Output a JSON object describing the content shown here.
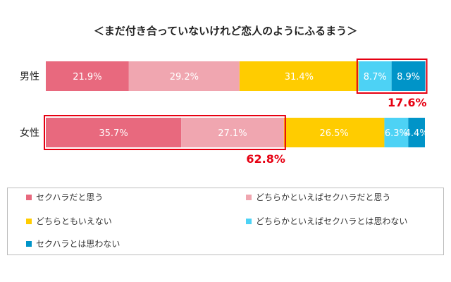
{
  "chart_data": {
    "type": "bar",
    "orientation": "horizontal",
    "stacked": true,
    "title": "＜まだ付き合っていないけれど恋人のようにふるまう＞",
    "categories": [
      "男性",
      "女性"
    ],
    "series": [
      {
        "name": "セクハラだと思う",
        "values": [
          21.9,
          35.7
        ],
        "color": "#e8697e"
      },
      {
        "name": "どちらかといえばセクハラだと思う",
        "values": [
          29.2,
          27.1
        ],
        "color": "#f0a6b0"
      },
      {
        "name": "どちらともいえない",
        "values": [
          31.4,
          26.5
        ],
        "color": "#ffcc00"
      },
      {
        "name": "どちらかといえばセクハラとは思わない",
        "values": [
          8.7,
          6.3
        ],
        "color": "#4dd2f5"
      },
      {
        "name": "セクハラとは思わない",
        "values": [
          8.9,
          4.4
        ],
        "color": "#0094c8"
      }
    ],
    "value_labels": [
      [
        "21.9%",
        "29.2%",
        "31.4%",
        "8.7%",
        "8.9%"
      ],
      [
        "35.7%",
        "27.1%",
        "26.5%",
        "6.3%",
        "4.4%"
      ]
    ],
    "annotations": [
      {
        "row": 0,
        "from_series": 3,
        "to_series": 4,
        "text": "17.6%"
      },
      {
        "row": 1,
        "from_series": 0,
        "to_series": 1,
        "text": "62.8%"
      }
    ],
    "xlim": [
      0,
      100
    ],
    "grid": false,
    "legend_position": "bottom",
    "highlight_color": "#e60012"
  }
}
